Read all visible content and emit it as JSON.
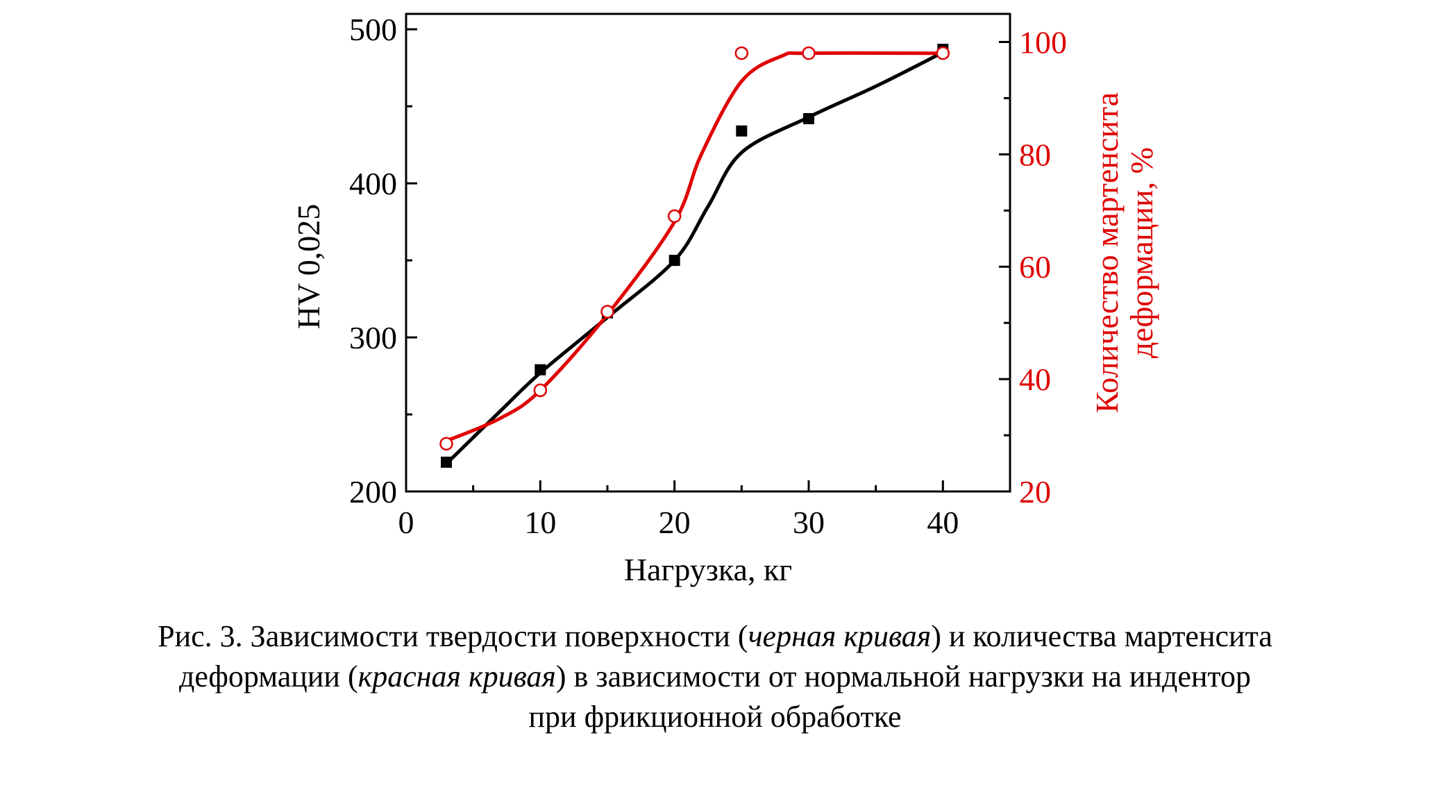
{
  "chart_data": {
    "type": "line",
    "xlabel": "Нагрузка, кг",
    "ylabel": "HV 0,025",
    "y2label_line1": "Количество мартенсита",
    "y2label_line2": "деформации, %",
    "xlim": [
      0,
      45
    ],
    "ylim": [
      200,
      510
    ],
    "y2lim": [
      20,
      105
    ],
    "x_ticks": [
      0,
      10,
      20,
      30,
      40
    ],
    "y_ticks": [
      200,
      300,
      400,
      500
    ],
    "y2_ticks": [
      20,
      40,
      60,
      80,
      100
    ],
    "grid": false,
    "colors": {
      "hardness": "#000000",
      "martensite": "#e00000"
    },
    "series": [
      {
        "axis": "left",
        "marker": "square",
        "color": "#000000",
        "x": [
          3,
          10,
          15,
          20,
          25,
          30,
          40
        ],
        "y": [
          219,
          279,
          316,
          350,
          434,
          442,
          487
        ]
      },
      {
        "axis": "right",
        "marker": "circle",
        "color": "#e00000",
        "x": [
          3,
          10,
          15,
          20,
          25,
          30,
          40
        ],
        "y": [
          28.5,
          38,
          52,
          69,
          98,
          98,
          98
        ]
      }
    ],
    "curves": {
      "hardness": [
        [
          3,
          218
        ],
        [
          7,
          252
        ],
        [
          10,
          277
        ],
        [
          15,
          313
        ],
        [
          20,
          350
        ],
        [
          22.5,
          385
        ],
        [
          25,
          420
        ],
        [
          30,
          443
        ],
        [
          35,
          463
        ],
        [
          40,
          485
        ]
      ],
      "martensite": [
        [
          3,
          29
        ],
        [
          7,
          33
        ],
        [
          10,
          38
        ],
        [
          15,
          51.5
        ],
        [
          20,
          68
        ],
        [
          22,
          80
        ],
        [
          25,
          93
        ],
        [
          28,
          97.5
        ],
        [
          30,
          98
        ],
        [
          40,
          98
        ]
      ]
    }
  },
  "caption": {
    "line1_pre": "Рис. 3. Зависимости твердости поверхности (",
    "line1_italic": "черная кривая",
    "line1_post": ") и количества мартенсита",
    "line2_pre": "деформации (",
    "line2_italic": "красная кривая",
    "line2_post": ") в зависимости от нормальной нагрузки на индентор",
    "line3": "при фрикционной обработке"
  }
}
